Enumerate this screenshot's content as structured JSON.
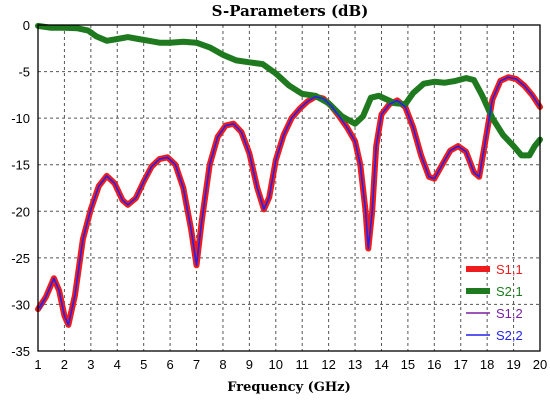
{
  "chart_data": {
    "type": "line",
    "title": "S-Parameters (dB)",
    "xlabel": "Frequency (GHz)",
    "ylabel": "",
    "xlim": [
      1,
      20
    ],
    "ylim": [
      -35,
      0
    ],
    "xticks": [
      1,
      2,
      3,
      4,
      5,
      6,
      7,
      8,
      9,
      10,
      11,
      12,
      13,
      14,
      15,
      16,
      17,
      18,
      19,
      20
    ],
    "yticks": [
      0,
      -5,
      -10,
      -15,
      -20,
      -25,
      -30,
      -35
    ],
    "grid": true,
    "legend_position": "bottom-right",
    "series": [
      {
        "name": "S1,1",
        "color": "#ee1c1c",
        "width": 6,
        "points": [
          [
            1,
            -30.5
          ],
          [
            1.3,
            -29.2
          ],
          [
            1.6,
            -27.2
          ],
          [
            1.8,
            -28.5
          ],
          [
            2.0,
            -31.2
          ],
          [
            2.15,
            -32.2
          ],
          [
            2.4,
            -29
          ],
          [
            2.7,
            -23
          ],
          [
            3.0,
            -19.8
          ],
          [
            3.3,
            -17.3
          ],
          [
            3.6,
            -16.2
          ],
          [
            3.9,
            -17
          ],
          [
            4.2,
            -18.8
          ],
          [
            4.4,
            -19.3
          ],
          [
            4.7,
            -18.6
          ],
          [
            5.0,
            -16.8
          ],
          [
            5.3,
            -15.2
          ],
          [
            5.6,
            -14.4
          ],
          [
            5.9,
            -14.2
          ],
          [
            6.2,
            -15
          ],
          [
            6.5,
            -17.5
          ],
          [
            6.8,
            -22
          ],
          [
            7.0,
            -25.8
          ],
          [
            7.2,
            -21
          ],
          [
            7.5,
            -15
          ],
          [
            7.8,
            -12
          ],
          [
            8.1,
            -10.8
          ],
          [
            8.4,
            -10.6
          ],
          [
            8.7,
            -11.5
          ],
          [
            9.0,
            -13.8
          ],
          [
            9.3,
            -17.5
          ],
          [
            9.55,
            -19.8
          ],
          [
            9.75,
            -18.5
          ],
          [
            10.0,
            -14.5
          ],
          [
            10.3,
            -11.8
          ],
          [
            10.6,
            -10
          ],
          [
            10.9,
            -9
          ],
          [
            11.2,
            -8.2
          ],
          [
            11.5,
            -7.7
          ],
          [
            11.8,
            -7.9
          ],
          [
            12.1,
            -8.7
          ],
          [
            12.4,
            -9.8
          ],
          [
            12.7,
            -11
          ],
          [
            13.0,
            -12.5
          ],
          [
            13.2,
            -15
          ],
          [
            13.4,
            -20
          ],
          [
            13.5,
            -24
          ],
          [
            13.65,
            -20
          ],
          [
            13.8,
            -13
          ],
          [
            14.0,
            -9.6
          ],
          [
            14.3,
            -8.5
          ],
          [
            14.6,
            -8.1
          ],
          [
            14.9,
            -8.8
          ],
          [
            15.2,
            -11
          ],
          [
            15.5,
            -14
          ],
          [
            15.8,
            -16.3
          ],
          [
            16.0,
            -16.5
          ],
          [
            16.3,
            -15
          ],
          [
            16.6,
            -13.5
          ],
          [
            16.9,
            -13
          ],
          [
            17.2,
            -13.6
          ],
          [
            17.5,
            -15.8
          ],
          [
            17.7,
            -16.3
          ],
          [
            17.9,
            -13
          ],
          [
            18.2,
            -8
          ],
          [
            18.5,
            -6
          ],
          [
            18.8,
            -5.6
          ],
          [
            19.1,
            -5.8
          ],
          [
            19.4,
            -6.5
          ],
          [
            19.7,
            -7.5
          ],
          [
            20.0,
            -8.8
          ]
        ]
      },
      {
        "name": "S2,1",
        "color": "#1f7a1f",
        "width": 6,
        "points": [
          [
            1,
            -0.1
          ],
          [
            1.5,
            -0.3
          ],
          [
            2.0,
            -0.3
          ],
          [
            2.5,
            -0.35
          ],
          [
            2.9,
            -0.6
          ],
          [
            3.2,
            -1.2
          ],
          [
            3.6,
            -1.7
          ],
          [
            4.0,
            -1.5
          ],
          [
            4.4,
            -1.3
          ],
          [
            4.8,
            -1.5
          ],
          [
            5.2,
            -1.7
          ],
          [
            5.6,
            -1.9
          ],
          [
            6.0,
            -1.9
          ],
          [
            6.5,
            -1.8
          ],
          [
            7.0,
            -1.9
          ],
          [
            7.5,
            -2.4
          ],
          [
            8.0,
            -3.2
          ],
          [
            8.5,
            -3.8
          ],
          [
            9.0,
            -4.0
          ],
          [
            9.5,
            -4.2
          ],
          [
            10.0,
            -5.2
          ],
          [
            10.5,
            -6.5
          ],
          [
            11.0,
            -7.4
          ],
          [
            11.5,
            -7.6
          ],
          [
            12.0,
            -8.4
          ],
          [
            12.5,
            -9.8
          ],
          [
            13.0,
            -10.6
          ],
          [
            13.3,
            -9.8
          ],
          [
            13.6,
            -7.8
          ],
          [
            13.9,
            -7.6
          ],
          [
            14.2,
            -8.0
          ],
          [
            14.5,
            -8.4
          ],
          [
            14.9,
            -8.5
          ],
          [
            15.2,
            -7.3
          ],
          [
            15.6,
            -6.3
          ],
          [
            16.0,
            -6.1
          ],
          [
            16.4,
            -6.2
          ],
          [
            16.8,
            -6.0
          ],
          [
            17.2,
            -5.7
          ],
          [
            17.5,
            -5.9
          ],
          [
            17.8,
            -7.5
          ],
          [
            18.2,
            -10
          ],
          [
            18.6,
            -11.8
          ],
          [
            19.0,
            -13
          ],
          [
            19.3,
            -14
          ],
          [
            19.6,
            -14
          ],
          [
            19.8,
            -13
          ],
          [
            20.0,
            -12.3
          ]
        ]
      },
      {
        "name": "S1,2",
        "color": "#7a1fa0",
        "width": 1.5,
        "points": [
          [
            1.1,
            -30.5
          ],
          [
            1.3,
            -29.2
          ],
          [
            1.6,
            -27.2
          ],
          [
            1.8,
            -28.5
          ],
          [
            2.0,
            -31.2
          ],
          [
            2.15,
            -32.2
          ],
          [
            2.4,
            -29
          ],
          [
            2.7,
            -23
          ],
          [
            3.0,
            -19.8
          ],
          [
            3.3,
            -17.3
          ],
          [
            3.6,
            -16.2
          ],
          [
            3.9,
            -17
          ],
          [
            4.2,
            -18.8
          ],
          [
            4.4,
            -19.3
          ],
          [
            4.7,
            -18.6
          ],
          [
            5.0,
            -16.8
          ],
          [
            5.3,
            -15.2
          ],
          [
            5.6,
            -14.4
          ],
          [
            5.9,
            -14.2
          ],
          [
            6.2,
            -15
          ],
          [
            6.5,
            -17.5
          ],
          [
            6.8,
            -22
          ],
          [
            7.0,
            -25.8
          ],
          [
            7.2,
            -21
          ],
          [
            7.5,
            -15
          ],
          [
            7.8,
            -12
          ],
          [
            8.1,
            -10.8
          ],
          [
            8.4,
            -10.6
          ],
          [
            8.7,
            -11.5
          ],
          [
            9.0,
            -13.8
          ],
          [
            9.3,
            -17.5
          ],
          [
            9.55,
            -19.8
          ],
          [
            9.75,
            -18.5
          ],
          [
            10.0,
            -14.5
          ],
          [
            10.3,
            -11.8
          ],
          [
            10.6,
            -10
          ],
          [
            10.9,
            -9
          ],
          [
            11.2,
            -8.2
          ],
          [
            11.5,
            -7.7
          ],
          [
            11.8,
            -7.9
          ],
          [
            12.1,
            -8.7
          ],
          [
            12.4,
            -9.8
          ],
          [
            12.7,
            -11
          ],
          [
            13.0,
            -12.5
          ],
          [
            13.2,
            -15
          ],
          [
            13.4,
            -20
          ],
          [
            13.5,
            -24
          ],
          [
            13.65,
            -20
          ],
          [
            13.8,
            -13
          ],
          [
            14.0,
            -9.6
          ],
          [
            14.3,
            -8.5
          ],
          [
            14.6,
            -8.1
          ],
          [
            14.9,
            -8.8
          ],
          [
            15.2,
            -11
          ],
          [
            15.5,
            -14
          ],
          [
            15.8,
            -16.3
          ],
          [
            16.0,
            -16.5
          ],
          [
            16.3,
            -15
          ],
          [
            16.6,
            -13.5
          ],
          [
            16.9,
            -13
          ],
          [
            17.2,
            -13.6
          ],
          [
            17.5,
            -15.8
          ],
          [
            17.7,
            -16.3
          ],
          [
            17.9,
            -13
          ],
          [
            18.2,
            -8
          ],
          [
            18.5,
            -6
          ],
          [
            18.8,
            -5.6
          ],
          [
            19.1,
            -5.8
          ],
          [
            19.4,
            -6.5
          ],
          [
            19.7,
            -7.5
          ],
          [
            20.0,
            -8.8
          ]
        ]
      },
      {
        "name": "S2,2",
        "color": "#2222ee",
        "width": 1.5,
        "points": [
          [
            1,
            -30.5
          ],
          [
            1.3,
            -29.2
          ],
          [
            1.6,
            -27.2
          ],
          [
            1.8,
            -28.5
          ],
          [
            2.0,
            -31.2
          ],
          [
            2.15,
            -32.2
          ],
          [
            2.4,
            -29
          ],
          [
            2.7,
            -23
          ],
          [
            3.0,
            -19.8
          ],
          [
            3.3,
            -17.3
          ],
          [
            3.6,
            -16.2
          ],
          [
            3.9,
            -17
          ],
          [
            4.2,
            -18.8
          ],
          [
            4.4,
            -19.3
          ],
          [
            4.7,
            -18.6
          ],
          [
            5.0,
            -16.8
          ],
          [
            5.3,
            -15.2
          ],
          [
            5.6,
            -14.4
          ],
          [
            5.9,
            -14.2
          ],
          [
            6.2,
            -15
          ],
          [
            6.5,
            -17.5
          ],
          [
            6.8,
            -22
          ],
          [
            7.0,
            -25.8
          ],
          [
            7.2,
            -21
          ],
          [
            7.5,
            -15
          ],
          [
            7.8,
            -12
          ],
          [
            8.1,
            -10.8
          ],
          [
            8.4,
            -10.6
          ],
          [
            8.7,
            -11.5
          ],
          [
            9.0,
            -13.8
          ],
          [
            9.3,
            -17.5
          ],
          [
            9.55,
            -19.8
          ],
          [
            9.75,
            -18.5
          ],
          [
            10.0,
            -14.5
          ],
          [
            10.3,
            -11.8
          ],
          [
            10.6,
            -10
          ],
          [
            10.9,
            -9
          ],
          [
            11.2,
            -8.2
          ],
          [
            11.5,
            -7.7
          ],
          [
            11.8,
            -7.9
          ],
          [
            12.1,
            -8.7
          ],
          [
            12.4,
            -9.8
          ],
          [
            12.7,
            -11
          ],
          [
            13.0,
            -12.5
          ],
          [
            13.2,
            -15
          ],
          [
            13.4,
            -20
          ],
          [
            13.5,
            -24
          ],
          [
            13.65,
            -20
          ],
          [
            13.8,
            -13
          ],
          [
            14.0,
            -9.6
          ],
          [
            14.3,
            -8.5
          ],
          [
            14.6,
            -8.1
          ],
          [
            14.9,
            -8.8
          ],
          [
            15.2,
            -11
          ],
          [
            15.5,
            -14
          ],
          [
            15.8,
            -16.3
          ],
          [
            16.0,
            -16.5
          ],
          [
            16.3,
            -15
          ],
          [
            16.6,
            -13.5
          ],
          [
            16.9,
            -13
          ],
          [
            17.2,
            -13.6
          ],
          [
            17.5,
            -15.8
          ],
          [
            17.7,
            -16.3
          ],
          [
            17.9,
            -13
          ],
          [
            18.2,
            -8
          ],
          [
            18.5,
            -6
          ],
          [
            18.8,
            -5.6
          ],
          [
            19.1,
            -5.8
          ],
          [
            19.4,
            -6.5
          ],
          [
            19.7,
            -7.5
          ],
          [
            20.0,
            -8.8
          ]
        ]
      }
    ]
  }
}
